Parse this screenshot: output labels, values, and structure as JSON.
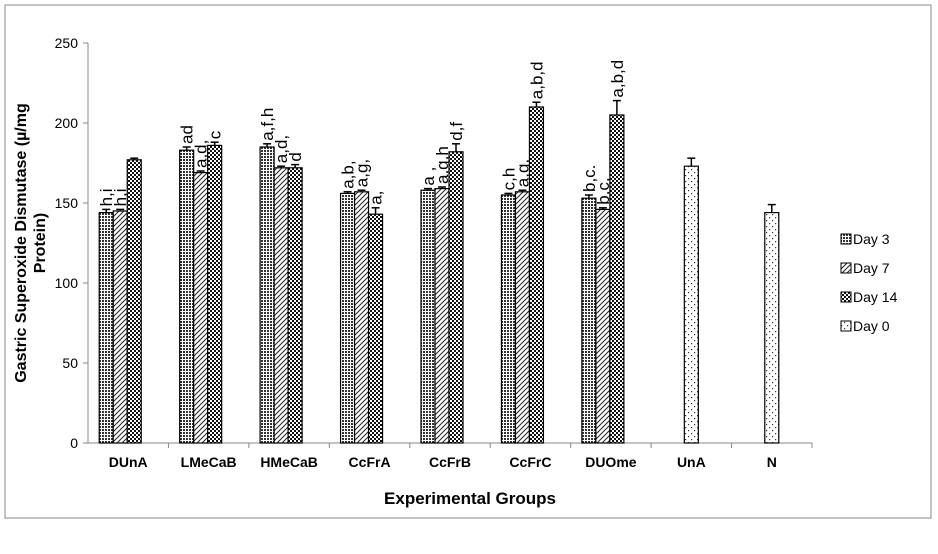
{
  "chart_data": {
    "type": "bar",
    "title": "",
    "xlabel": "Experimental Groups",
    "ylabel": "Gastric Superoxide Dismutase (µ/mg Protein)",
    "ylim": [
      0,
      250
    ],
    "yticks": [
      0,
      50,
      100,
      150,
      200,
      250
    ],
    "ytick_labels": [
      "0",
      "50",
      "100",
      "150",
      "200",
      "250"
    ],
    "categories": [
      "DUnA",
      "LMeCaB",
      "HMeCaB",
      "CcFrA",
      "CcFrB",
      "CcFrC",
      "DUOme",
      "UnA",
      "N"
    ],
    "legend_position": "right",
    "series": [
      {
        "name": "Day 3",
        "pattern": "dots",
        "values": [
          144,
          183,
          185,
          156,
          158,
          155,
          153,
          null,
          null
        ],
        "errors": [
          2,
          2,
          2,
          1,
          1,
          1,
          2,
          null,
          null
        ],
        "annotations": [
          "h,i",
          "ad",
          "a,f,h",
          "a,b,",
          "a ,",
          "c,h",
          "b,c.",
          "",
          ""
        ]
      },
      {
        "name": "Day 7",
        "pattern": "diag",
        "values": [
          145,
          169,
          172,
          157,
          159,
          157,
          146,
          null,
          null
        ],
        "errors": [
          1,
          1,
          1,
          1,
          1,
          1,
          1,
          null,
          null
        ],
        "annotations": [
          "h,i",
          "a,d,",
          "a,d,",
          "a,g,",
          "a,g,h",
          "a,g,",
          "b,c,",
          "",
          ""
        ]
      },
      {
        "name": "Day 14",
        "pattern": "checker",
        "values": [
          177,
          186,
          172,
          143,
          182,
          210,
          205,
          null,
          null
        ],
        "errors": [
          1,
          2,
          2,
          4,
          5,
          3,
          9,
          null,
          null
        ],
        "annotations": [
          "",
          "c",
          "d",
          "a,",
          "d,f",
          "a,b,d",
          "a,b,d",
          "",
          ""
        ]
      },
      {
        "name": "Day 0",
        "pattern": "sparse",
        "values": [
          null,
          null,
          null,
          null,
          null,
          null,
          null,
          173,
          144
        ],
        "errors": [
          null,
          null,
          null,
          null,
          null,
          null,
          null,
          5,
          5
        ],
        "annotations": [
          "",
          "",
          "",
          "",
          "",
          "",
          "",
          "",
          ""
        ]
      }
    ]
  }
}
